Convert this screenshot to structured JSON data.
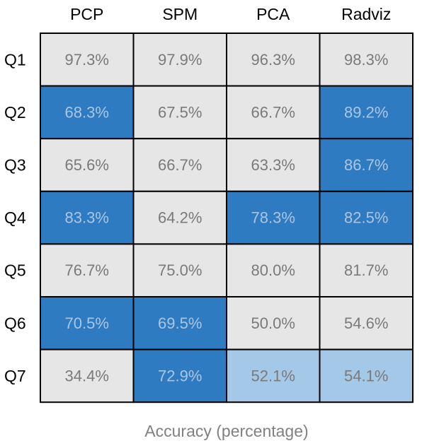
{
  "chart_data": {
    "type": "heatmap",
    "caption": "Accuracy (percentage)",
    "columns": [
      "PCP",
      "SPM",
      "PCA",
      "Radviz"
    ],
    "rows": [
      "Q1",
      "Q2",
      "Q3",
      "Q4",
      "Q5",
      "Q6",
      "Q7"
    ],
    "values": [
      [
        "97.3%",
        "97.9%",
        "96.3%",
        "98.3%"
      ],
      [
        "68.3%",
        "67.5%",
        "66.7%",
        "89.2%"
      ],
      [
        "65.6%",
        "66.7%",
        "63.3%",
        "86.7%"
      ],
      [
        "83.3%",
        "64.2%",
        "78.3%",
        "82.5%"
      ],
      [
        "76.7%",
        "75.0%",
        "80.0%",
        "81.7%"
      ],
      [
        "70.5%",
        "69.5%",
        "50.0%",
        "54.6%"
      ],
      [
        "34.4%",
        "72.9%",
        "52.1%",
        "54.1%"
      ]
    ],
    "highlight": [
      [
        "none",
        "none",
        "none",
        "none"
      ],
      [
        "strong",
        "none",
        "none",
        "strong"
      ],
      [
        "none",
        "none",
        "none",
        "strong"
      ],
      [
        "strong",
        "none",
        "strong",
        "strong"
      ],
      [
        "none",
        "none",
        "none",
        "none"
      ],
      [
        "strong",
        "strong",
        "none",
        "none"
      ],
      [
        "none",
        "strong",
        "light",
        "light"
      ]
    ],
    "colors": {
      "none": "#e6e6e6",
      "strong": "#2f7bc1",
      "light": "#a3c8e8",
      "text_on_none": "#7a7a7a",
      "text_on_strong": "#a9c6e6",
      "text_on_light": "#7a7a7a",
      "border": "#000000"
    }
  }
}
